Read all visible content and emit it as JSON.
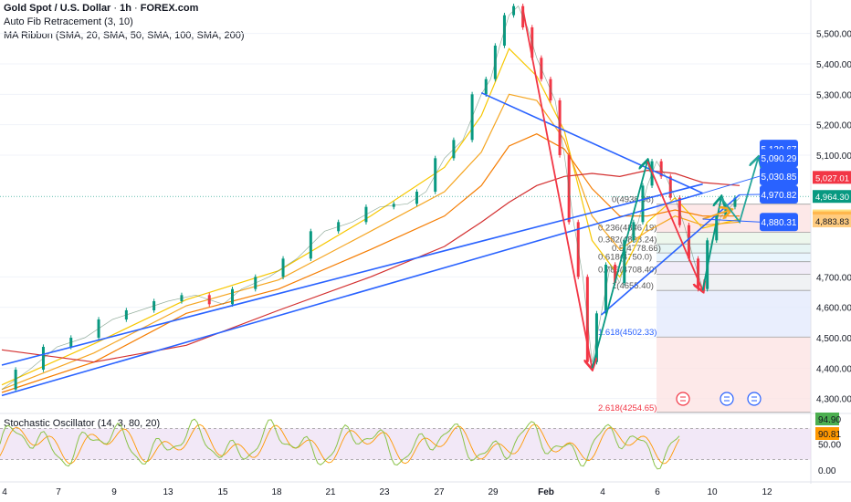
{
  "header": {
    "symbol": "Gold Spot / U.S. Dollar",
    "interval": "1h",
    "source": "FOREX.com",
    "separator": "·",
    "indicators": [
      "Auto Fib Retracement (3, 10)",
      "MA Ribbon (SMA, 20, SMA, 50, SMA, 100, SMA, 200)"
    ],
    "oscillator": "Stochastic Oscillator (14, 3, 80, 20)"
  },
  "colors": {
    "trendline": "#2962ff",
    "price_up": "#089981",
    "price_down": "#f23645",
    "arrow_green": "#089981",
    "arrow_red": "#f23645",
    "ma20": "#f7c700",
    "ma50": "#f5a623",
    "ma100": "#f57c00",
    "ma200": "#d32f2f",
    "stoch_k": "#8bc34a",
    "stoch_d": "#ff9800",
    "osc_band": "#e9d8f2"
  },
  "chart_data": {
    "type": "line",
    "price_axis": {
      "ylim": [
        4260,
        5610
      ],
      "ticks": [
        5500,
        5400,
        5300,
        5200,
        5100,
        4700,
        4600,
        4500,
        4400,
        4300
      ],
      "tick_labels": [
        "5,500.00",
        "5,400.00",
        "5,300.00",
        "5,200.00",
        "5,100.00",
        "4,700.00",
        "4,600.00",
        "4,500.00",
        "4,400.00",
        "4,300.00"
      ]
    },
    "x_axis": {
      "labels": [
        "4",
        "7",
        "9",
        "13",
        "15",
        "18",
        "21",
        "23",
        "27",
        "29",
        "Feb",
        "4",
        "6",
        "10",
        "12"
      ],
      "bold_label": "Feb"
    },
    "price_series": [
      [
        0,
        4330
      ],
      [
        6,
        4395
      ],
      [
        12,
        4470
      ],
      [
        18,
        4500
      ],
      [
        24,
        4560
      ],
      [
        30,
        4590
      ],
      [
        36,
        4620
      ],
      [
        42,
        4640
      ],
      [
        48,
        4610
      ],
      [
        52,
        4660
      ],
      [
        58,
        4700
      ],
      [
        64,
        4760
      ],
      [
        70,
        4850
      ],
      [
        76,
        4880
      ],
      [
        82,
        4930
      ],
      [
        88,
        4940
      ],
      [
        92,
        4980
      ],
      [
        96,
        5090
      ],
      [
        100,
        5150
      ],
      [
        104,
        5300
      ],
      [
        106,
        5350
      ],
      [
        108,
        5460
      ],
      [
        110,
        5560
      ],
      [
        112,
        5590
      ],
      [
        114,
        5520
      ],
      [
        116,
        5420
      ],
      [
        118,
        5350
      ],
      [
        120,
        5280
      ],
      [
        122,
        5100
      ],
      [
        124,
        4880
      ],
      [
        126,
        4700
      ],
      [
        128,
        4420
      ],
      [
        130,
        4580
      ],
      [
        132,
        4740
      ],
      [
        134,
        4680
      ],
      [
        136,
        4820
      ],
      [
        138,
        4880
      ],
      [
        140,
        5000
      ],
      [
        142,
        5080
      ],
      [
        144,
        5030
      ],
      [
        146,
        4960
      ],
      [
        148,
        4870
      ],
      [
        150,
        4760
      ],
      [
        152,
        4660
      ],
      [
        154,
        4820
      ],
      [
        156,
        4900
      ],
      [
        158,
        4930
      ],
      [
        160,
        4960
      ]
    ],
    "series": [
      {
        "name": "SMA 20",
        "color_key": "ma20",
        "values": [
          [
            0,
            4345
          ],
          [
            20,
            4480
          ],
          [
            40,
            4625
          ],
          [
            60,
            4720
          ],
          [
            80,
            4900
          ],
          [
            96,
            5060
          ],
          [
            104,
            5230
          ],
          [
            110,
            5450
          ],
          [
            116,
            5360
          ],
          [
            122,
            5180
          ],
          [
            128,
            4820
          ],
          [
            134,
            4700
          ],
          [
            140,
            4880
          ],
          [
            146,
            4960
          ],
          [
            152,
            4860
          ],
          [
            160,
            4890
          ]
        ]
      },
      {
        "name": "SMA 50",
        "color_key": "ma50",
        "values": [
          [
            0,
            4330
          ],
          [
            20,
            4450
          ],
          [
            40,
            4605
          ],
          [
            60,
            4690
          ],
          [
            80,
            4850
          ],
          [
            96,
            4980
          ],
          [
            104,
            5110
          ],
          [
            110,
            5300
          ],
          [
            116,
            5280
          ],
          [
            122,
            5150
          ],
          [
            128,
            4900
          ],
          [
            134,
            4790
          ],
          [
            140,
            4850
          ],
          [
            146,
            4900
          ],
          [
            152,
            4870
          ],
          [
            160,
            4880
          ]
        ]
      },
      {
        "name": "SMA 100",
        "color_key": "ma100",
        "values": [
          [
            0,
            4320
          ],
          [
            20,
            4420
          ],
          [
            40,
            4580
          ],
          [
            60,
            4660
          ],
          [
            80,
            4790
          ],
          [
            96,
            4900
          ],
          [
            104,
            5000
          ],
          [
            110,
            5130
          ],
          [
            116,
            5170
          ],
          [
            122,
            5120
          ],
          [
            128,
            4990
          ],
          [
            134,
            4900
          ],
          [
            140,
            4900
          ],
          [
            146,
            4920
          ],
          [
            152,
            4900
          ],
          [
            160,
            4900
          ]
        ]
      },
      {
        "name": "SMA 200",
        "color_key": "ma200",
        "values": [
          [
            0,
            4460
          ],
          [
            20,
            4420
          ],
          [
            40,
            4475
          ],
          [
            60,
            4590
          ],
          [
            80,
            4700
          ],
          [
            96,
            4800
          ],
          [
            104,
            4880
          ],
          [
            110,
            4945
          ],
          [
            116,
            5000
          ],
          [
            122,
            5030
          ],
          [
            128,
            5040
          ],
          [
            134,
            5030
          ],
          [
            140,
            5050
          ],
          [
            146,
            5040
          ],
          [
            152,
            5010
          ],
          [
            160,
            5000
          ]
        ]
      }
    ],
    "trendlines": [
      [
        [
          0,
          4410
        ],
        [
          152,
          5005
        ]
      ],
      [
        [
          0,
          4310
        ],
        [
          152,
          4975
        ]
      ],
      [
        [
          104,
          5305
        ],
        [
          152,
          4975
        ]
      ],
      [
        [
          130,
          4575
        ],
        [
          160,
          4970
        ]
      ]
    ],
    "fib_levels": [
      {
        "label": "0(4938.98)",
        "ratio": "0",
        "value": 4938.98
      },
      {
        "label": "0.236(4846.19)",
        "ratio": "0.236",
        "value": 4846.19
      },
      {
        "label": "0.382(4808.24)",
        "ratio": "0.382",
        "value": 4808.24
      },
      {
        "label": "0.5(4778.66)",
        "ratio": "0.5",
        "value": 4778.66
      },
      {
        "label": "0.618(4750.0)",
        "ratio": "0.618",
        "value": 4750.0
      },
      {
        "label": "0.786(4708.40)",
        "ratio": "0.786",
        "value": 4708.4
      },
      {
        "label": "1(4655.40)",
        "ratio": "1",
        "value": 4655.4
      },
      {
        "label": "1.618(4502.33)",
        "ratio": "1.618",
        "value": 4502.33
      },
      {
        "label": "2.618(4254.65)",
        "ratio": "2.618",
        "value": 4254.65
      }
    ],
    "target_boxes": [
      {
        "value": 5120.67,
        "label": "5,120.67"
      },
      {
        "value": 5090.29,
        "label": "5,090.29"
      },
      {
        "value": 5030.85,
        "label": "5,030.85"
      },
      {
        "value": 4970.82,
        "label": "4,970.82"
      },
      {
        "value": 4880.31,
        "label": "4,880.31"
      }
    ],
    "axis_tags": [
      {
        "value": 5027.01,
        "label": "5,027.01",
        "style": "red"
      },
      {
        "value": 4964.3,
        "label": "4,964.30",
        "style": "green"
      },
      {
        "value": 4900.35,
        "label": "4,900.35",
        "style": "yellow"
      },
      {
        "value": 4893.97,
        "label": "4,893.97",
        "style": "orange"
      },
      {
        "value": 4883.83,
        "label": "4,883.83",
        "style": "lightorange"
      }
    ],
    "stochastic": {
      "ylim": [
        0,
        100
      ],
      "upper": 80,
      "lower": 20,
      "ticks": [
        50,
        0
      ],
      "tick_labels": [
        "50.00",
        "0.00"
      ],
      "k_value": "94.90",
      "d_value": "90.81"
    },
    "event_icons": [
      "lightning-icon",
      "flag-us-icon",
      "flag-us-icon"
    ]
  }
}
